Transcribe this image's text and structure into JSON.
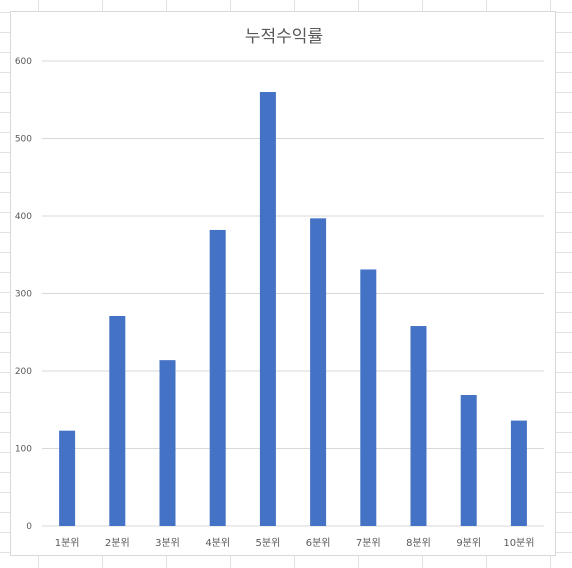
{
  "chart_data": {
    "type": "bar",
    "title": "누적수익률",
    "categories": [
      "1분위",
      "2분위",
      "3분위",
      "4분위",
      "5분위",
      "6분위",
      "7분위",
      "8분위",
      "9분위",
      "10분위"
    ],
    "series": [
      {
        "values": [
          123,
          271,
          214,
          382,
          560,
          397,
          331,
          258,
          169,
          136
        ]
      }
    ],
    "xlabel": "",
    "ylabel": "",
    "ylim": [
      0,
      600
    ],
    "yticks": [
      0,
      100,
      200,
      300,
      400,
      500,
      600
    ],
    "grid": true,
    "legend": "none",
    "bar_color": "#4472C4",
    "gridline_color": "#d9d9d9"
  }
}
